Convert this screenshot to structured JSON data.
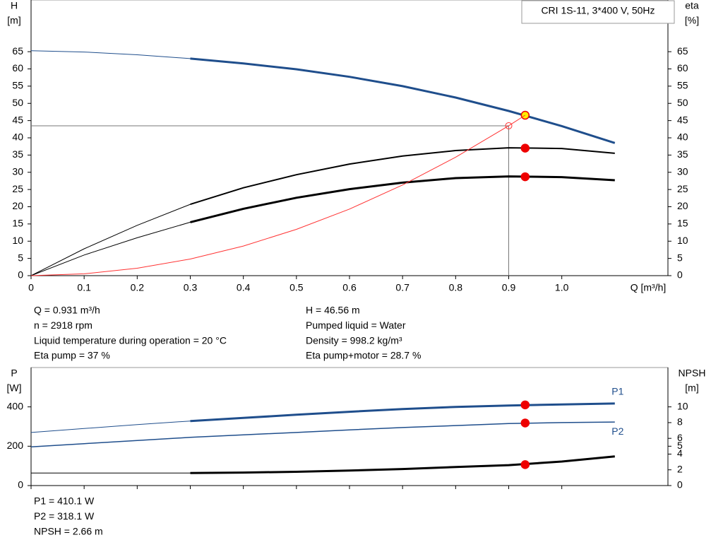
{
  "chart_data": [
    {
      "type": "line",
      "title": "CRI 1S-11, 3*400 V, 50Hz",
      "ylabel": [
        "H",
        "[m]"
      ],
      "y2label": [
        "eta",
        "[%]"
      ],
      "xlabel": "Q [m³/h]",
      "xlim": [
        0,
        1.2
      ],
      "xticks": [
        0,
        0.1,
        0.2,
        0.3,
        0.4,
        0.5,
        0.6,
        0.7,
        0.8,
        0.9,
        {
          "value": 1,
          "label": "1.0"
        }
      ],
      "ylim": [
        0,
        80
      ],
      "yticks": [
        0,
        5,
        10,
        15,
        20,
        25,
        30,
        35,
        40,
        45,
        50,
        55,
        60,
        65
      ],
      "y2lim": [
        0,
        80
      ],
      "y2ticks": [
        0,
        5,
        10,
        15,
        20,
        25,
        30,
        35,
        40,
        45,
        50,
        55,
        60,
        65
      ],
      "thick_from": 0.3,
      "guide": {
        "x": 0.9,
        "y": 43.5
      },
      "series": [
        {
          "color": "#1f4e8c",
          "width": 3,
          "axis": "y",
          "x": [
            0,
            0.1,
            0.2,
            0.3,
            0.4,
            0.5,
            0.6,
            0.7,
            0.8,
            0.9,
            1.0,
            1.1
          ],
          "values": [
            65.3,
            64.9,
            64.1,
            63,
            61.6,
            59.9,
            57.7,
            55,
            51.7,
            47.8,
            43.4,
            38.5
          ],
          "point": {
            "x": 0.931,
            "value": 46.56,
            "color": "#ffee00"
          }
        },
        {
          "color": "#000000",
          "width": 2,
          "axis": "y2",
          "x": [
            0,
            0.1,
            0.2,
            0.3,
            0.4,
            0.5,
            0.6,
            0.7,
            0.8,
            0.9,
            1.0,
            1.1
          ],
          "values": [
            0,
            7.8,
            14.6,
            20.7,
            25.5,
            29.3,
            32.4,
            34.7,
            36.3,
            37.1,
            36.9,
            35.5
          ],
          "point": {
            "x": 0.931,
            "value": 37,
            "color": "#ee0000"
          }
        },
        {
          "color": "#000000",
          "width": 3,
          "axis": "y2",
          "x": [
            0,
            0.1,
            0.2,
            0.3,
            0.4,
            0.5,
            0.6,
            0.7,
            0.8,
            0.9,
            1.0,
            1.1
          ],
          "values": [
            0,
            6,
            11,
            15.5,
            19.4,
            22.6,
            25.1,
            27,
            28.3,
            28.8,
            28.6,
            27.7
          ],
          "point": {
            "x": 0.931,
            "value": 28.7,
            "color": "#ee0000"
          }
        },
        {
          "color": "#ff3333",
          "width": 1,
          "axis": "y",
          "x": [
            0,
            0.1,
            0.2,
            0.3,
            0.4,
            0.5,
            0.6,
            0.7,
            0.8,
            0.9,
            0.931
          ],
          "values": [
            0,
            0.54,
            2.15,
            4.83,
            8.59,
            13.43,
            19.33,
            26.32,
            34.37,
            43.5,
            46.56
          ]
        }
      ],
      "annotations": [
        [
          "Q = 0.931 m³/h",
          "n = 2918 rpm",
          "Liquid temperature during operation = 20 °C",
          "Eta pump = 37 %"
        ],
        [
          "H = 46.56 m",
          "Pumped liquid = Water",
          "Density = 998.2 kg/m³",
          "Eta pump+motor = 28.7 %"
        ]
      ]
    },
    {
      "type": "line",
      "ylabel": [
        "P",
        "[W]"
      ],
      "y2label": [
        "NPSH",
        "[m]"
      ],
      "xlim": [
        0,
        1.2
      ],
      "xticks": [
        0,
        0.1,
        0.2,
        0.3,
        0.4,
        0.5,
        0.6,
        0.7,
        0.8,
        0.9,
        1
      ],
      "ylim": [
        0,
        600
      ],
      "yticks": [
        0,
        200,
        400
      ],
      "y2lim": [
        0,
        15
      ],
      "y2ticks": [
        0,
        2,
        4,
        5,
        6,
        8,
        10
      ],
      "thick_from": 0.3,
      "series": [
        {
          "name": "P1",
          "color": "#1f4e8c",
          "width": 3,
          "axis": "y",
          "x": [
            0,
            0.1,
            0.2,
            0.3,
            0.4,
            0.5,
            0.6,
            0.7,
            0.8,
            0.9,
            1.0,
            1.1
          ],
          "values": [
            270,
            290,
            310,
            328,
            344,
            360,
            375,
            389,
            400,
            407,
            412,
            417
          ],
          "point": {
            "x": 0.931,
            "value": 410.1,
            "color": "#ee0000"
          }
        },
        {
          "name": "P2",
          "color": "#1f4e8c",
          "width": 1.5,
          "axis": "y",
          "x": [
            0,
            0.1,
            0.2,
            0.3,
            0.4,
            0.5,
            0.6,
            0.7,
            0.8,
            0.9,
            1.0,
            1.1
          ],
          "values": [
            197,
            213,
            229,
            245,
            258,
            270,
            283,
            295,
            305,
            315,
            320,
            323
          ],
          "point": {
            "x": 0.931,
            "value": 318.1,
            "color": "#ee0000"
          }
        },
        {
          "color": "#000000",
          "width": 3,
          "axis": "y2",
          "x": [
            0,
            0.1,
            0.2,
            0.3,
            0.4,
            0.5,
            0.6,
            0.7,
            0.8,
            0.9,
            1.0,
            1.1
          ],
          "values": [
            1.6,
            1.6,
            1.6,
            1.6,
            1.65,
            1.75,
            1.9,
            2.1,
            2.35,
            2.6,
            3.05,
            3.7
          ],
          "point": {
            "x": 0.931,
            "value": 2.66,
            "color": "#ee0000"
          }
        }
      ],
      "annotations": [
        [
          "P1 = 410.1 W",
          "P2 = 318.1 W",
          "NPSH = 2.66 m"
        ]
      ]
    }
  ]
}
